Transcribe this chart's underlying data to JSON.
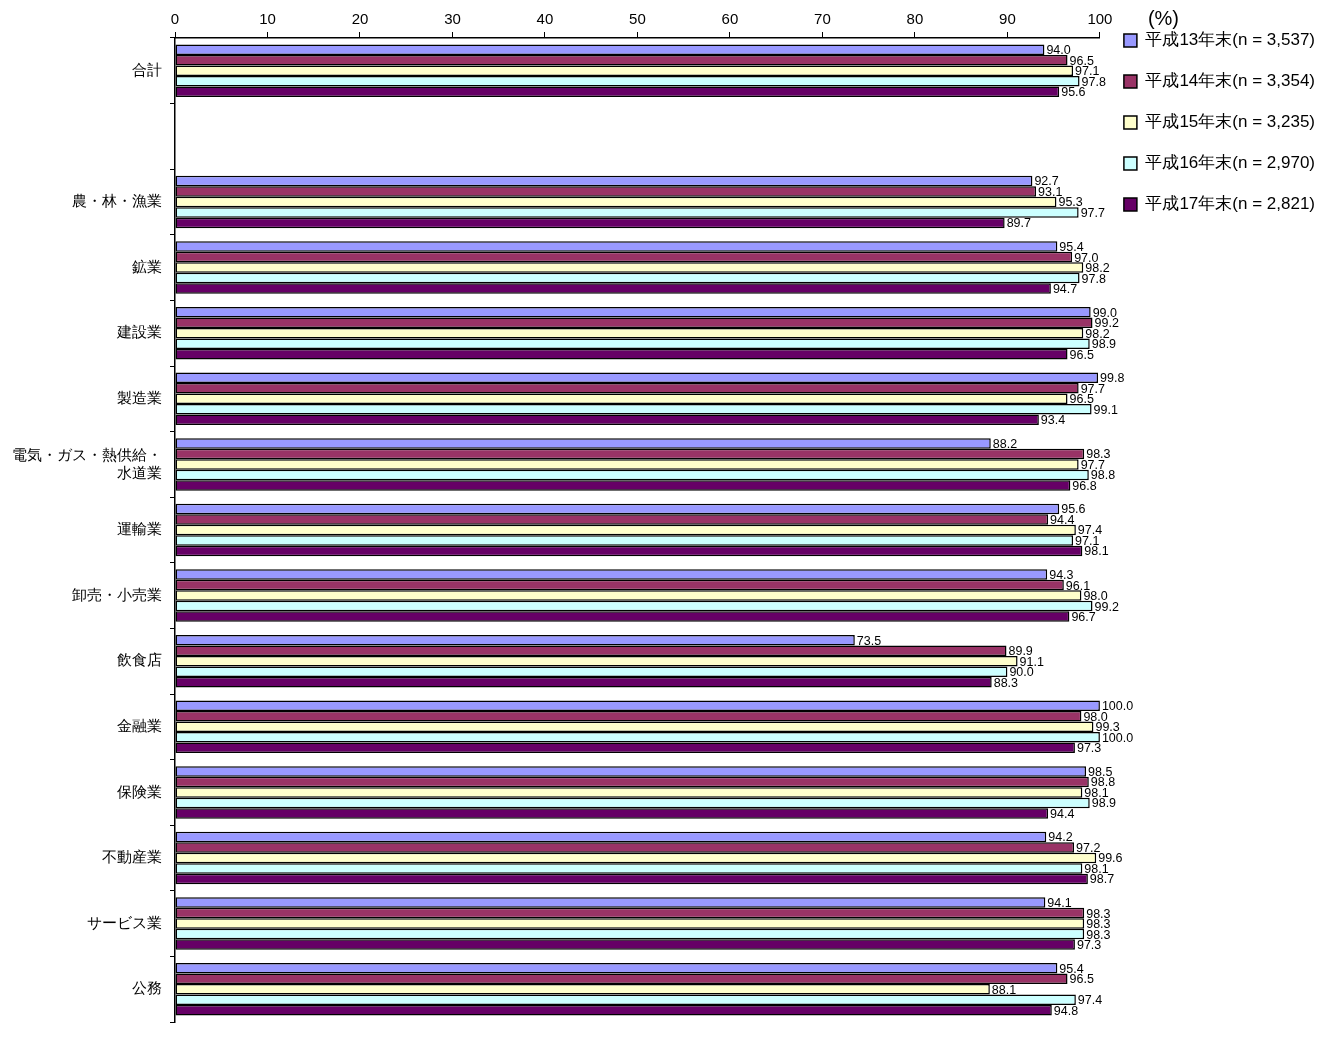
{
  "chart_data": {
    "type": "bar",
    "orientation": "horizontal",
    "xlabel": "(%)",
    "xlim": [
      0,
      100
    ],
    "xticks": [
      0,
      10,
      20,
      30,
      40,
      50,
      60,
      70,
      80,
      90,
      100
    ],
    "grid": false,
    "legend": "right",
    "categories": [
      "合計",
      null,
      "農・林・漁業",
      "鉱業",
      "建設業",
      "製造業",
      "電気・ガス・熱供給・水道業",
      "運輸業",
      "卸売・小売業",
      "飲食店",
      "金融業",
      "保険業",
      "不動産業",
      "サービス業",
      "公務"
    ],
    "series": [
      {
        "name": "平成13年末(n = 3,537)",
        "color": "#9999ff",
        "values": [
          94.0,
          null,
          92.7,
          95.4,
          99.0,
          99.8,
          88.2,
          95.6,
          94.3,
          73.5,
          100.0,
          98.5,
          94.2,
          94.1,
          95.4
        ],
        "value_labels": [
          "94.0",
          null,
          "92.7",
          "95.4",
          "99.0",
          "99.8",
          "88.2",
          "95.6",
          "94.3",
          "73.5",
          "100.0",
          "98.5",
          "94.2",
          "94.1",
          "95.4"
        ]
      },
      {
        "name": "平成14年末(n = 3,354)",
        "color": "#993366",
        "values": [
          96.5,
          null,
          93.1,
          97.0,
          99.2,
          97.7,
          98.3,
          94.4,
          96.1,
          89.9,
          98.0,
          98.8,
          97.2,
          98.3,
          96.5
        ],
        "value_labels": [
          "96.5",
          null,
          "93.1",
          "97.0",
          "99.2",
          "97.7",
          "98.3",
          "94.4",
          "96.1",
          "89.9",
          "98.0",
          "98.8",
          "97.2",
          "98.3",
          "96.5"
        ]
      },
      {
        "name": "平成15年末(n = 3,235)",
        "color": "#ffffcc",
        "values": [
          97.1,
          null,
          95.3,
          98.2,
          98.2,
          96.5,
          97.7,
          97.4,
          98.0,
          91.1,
          99.3,
          98.1,
          99.6,
          98.3,
          88.1
        ],
        "value_labels": [
          "97.1",
          null,
          "95.3",
          "98.2",
          "98.2",
          "96.5",
          "97.7",
          "97.4",
          "98.0",
          "91.1",
          "99.3",
          "98.1",
          "99.6",
          "98.3",
          "88.1"
        ]
      },
      {
        "name": "平成16年末(n = 2,970)",
        "color": "#ccffff",
        "values": [
          97.8,
          null,
          97.7,
          97.8,
          98.9,
          99.1,
          98.8,
          97.1,
          99.2,
          90.0,
          100.0,
          98.9,
          98.1,
          98.3,
          97.4
        ],
        "value_labels": [
          "97.8",
          null,
          "97.7",
          "97.8",
          "98.9",
          "99.1",
          "98.8",
          "97.1",
          "99.2",
          "90.0",
          "100.0",
          "98.9",
          "98.1",
          "98.3",
          "97.4"
        ]
      },
      {
        "name": "平成17年末(n = 2,821)",
        "color": "#660066",
        "values": [
          95.6,
          null,
          89.7,
          94.7,
          96.5,
          93.4,
          96.8,
          98.1,
          96.7,
          88.3,
          97.3,
          94.4,
          98.7,
          97.3,
          94.8
        ],
        "value_labels": [
          "95.6",
          null,
          "89.7",
          "94.7",
          "96.5",
          "93.4",
          "96.8",
          "98.1",
          "96.7",
          "88.3",
          "97.3",
          "94.4",
          "98.7",
          "97.3",
          "94.8"
        ]
      }
    ]
  }
}
